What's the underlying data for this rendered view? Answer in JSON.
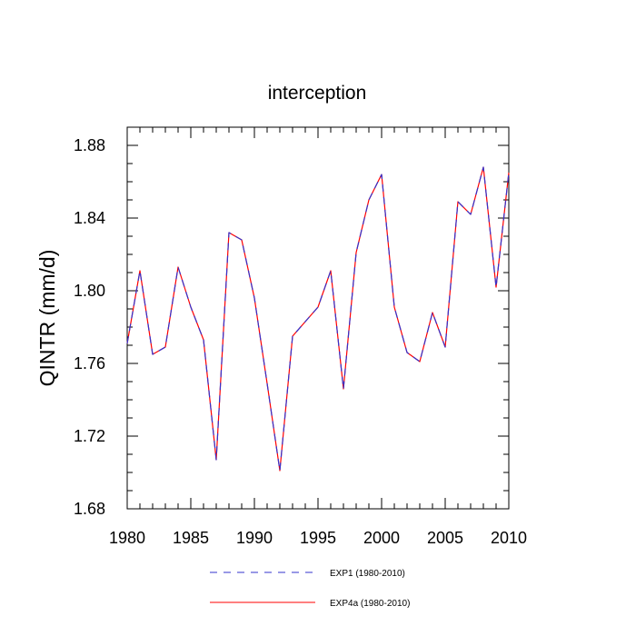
{
  "chart_data": {
    "type": "line",
    "title": "interception",
    "xlabel": "",
    "ylabel": "QINTR  (mm/d)",
    "xlim": [
      1980,
      2010
    ],
    "ylim": [
      1.68,
      1.89
    ],
    "x_ticks": [
      1980,
      1985,
      1990,
      1995,
      2000,
      2005,
      2010
    ],
    "y_ticks": [
      1.68,
      1.72,
      1.76,
      1.8,
      1.84,
      1.88
    ],
    "x_tick_labels": [
      "1980",
      "1985",
      "1990",
      "1995",
      "2000",
      "2005",
      "2010"
    ],
    "y_tick_labels": [
      "1.68",
      "1.72",
      "1.76",
      "1.80",
      "1.84",
      "1.88"
    ],
    "grid": false,
    "legend_position": "bottom",
    "x": [
      1980,
      1981,
      1982,
      1983,
      1984,
      1985,
      1986,
      1987,
      1988,
      1989,
      1990,
      1991,
      1992,
      1993,
      1994,
      1995,
      1996,
      1997,
      1998,
      1999,
      2000,
      2001,
      2002,
      2003,
      2004,
      2005,
      2006,
      2007,
      2008,
      2009,
      2010
    ],
    "series": [
      {
        "name": "EXP1 (1980-2010)",
        "color": "#3333cc",
        "style": "dashed",
        "values": [
          1.771,
          1.811,
          1.765,
          1.769,
          1.813,
          1.791,
          1.773,
          1.707,
          1.832,
          1.828,
          1.796,
          1.749,
          1.701,
          1.775,
          1.783,
          1.791,
          1.811,
          1.746,
          1.821,
          1.85,
          1.864,
          1.791,
          1.766,
          1.761,
          1.788,
          1.769,
          1.849,
          1.842,
          1.868,
          1.802,
          1.865
        ]
      },
      {
        "name": "EXP4a (1980-2010)",
        "color": "#ff0000",
        "style": "solid",
        "values": [
          1.771,
          1.811,
          1.765,
          1.769,
          1.813,
          1.791,
          1.773,
          1.707,
          1.832,
          1.828,
          1.796,
          1.749,
          1.701,
          1.775,
          1.783,
          1.791,
          1.811,
          1.746,
          1.821,
          1.85,
          1.864,
          1.791,
          1.766,
          1.761,
          1.788,
          1.769,
          1.849,
          1.842,
          1.868,
          1.802,
          1.865
        ]
      }
    ]
  }
}
